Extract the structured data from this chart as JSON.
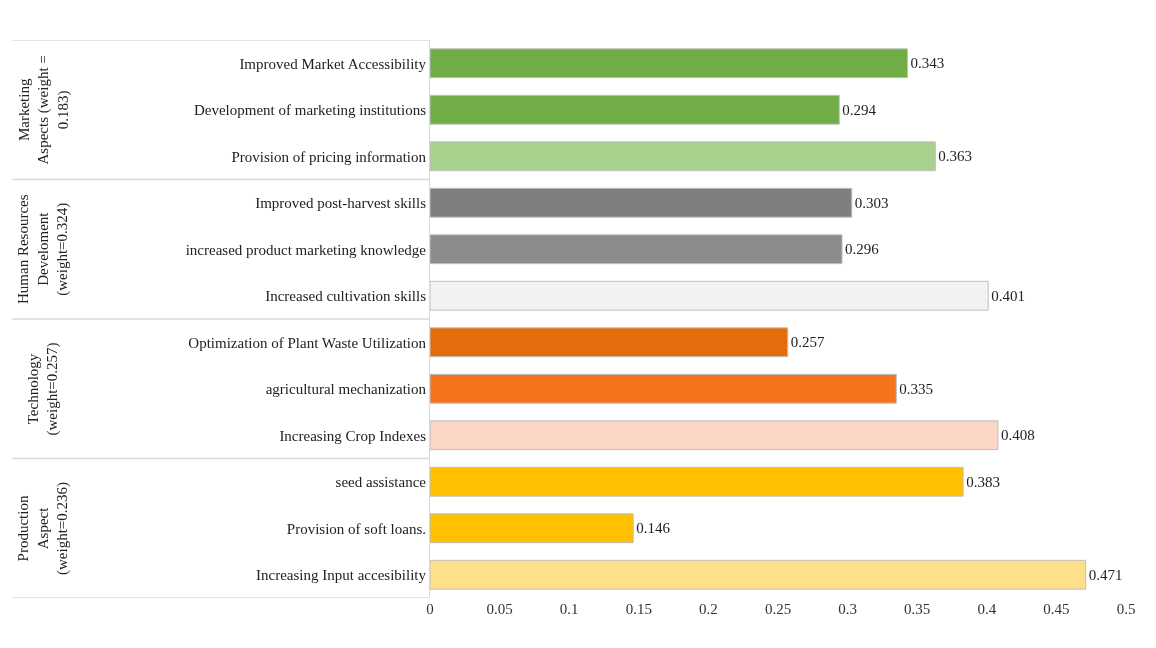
{
  "chart_data": {
    "type": "bar",
    "orientation": "horizontal",
    "categories": [
      "Improved Market Accessibility",
      "Development of marketing institutions",
      "Provision of pricing information",
      "Improved post-harvest skills",
      "increased product marketing knowledge",
      "Increased cultivation skills",
      "Optimization of Plant Waste Utilization",
      "agricultural mechanization",
      "Increasing Crop Indexes",
      "seed assistance",
      "Provision of soft loans.",
      "Increasing Input accesibility"
    ],
    "values": [
      0.343,
      0.294,
      0.363,
      0.303,
      0.296,
      0.401,
      0.257,
      0.335,
      0.408,
      0.383,
      0.146,
      0.471
    ],
    "colors": [
      "#70ad47",
      "#70ad47",
      "#a9d18e",
      "#7f7f7f",
      "#8c8c8c",
      "#f2f2f2",
      "#e46c0a",
      "#f4731c",
      "#fbd5c5",
      "#ffc000",
      "#ffc000",
      "#ffe08a"
    ],
    "data_labels": true,
    "xlim": [
      0,
      0.5
    ],
    "xticks": [
      0,
      0.05,
      0.1,
      0.15,
      0.2,
      0.25,
      0.3,
      0.35,
      0.4,
      0.45,
      0.5
    ],
    "legend": false,
    "annotations": [
      "Marketing\nAspects (weight =\n0.183)",
      "Human Resources\nDeveloment\n(weight=0.324)",
      "Technology\n(weight=0.257)",
      "Production\nAspect\n(weight=0.236)"
    ]
  }
}
